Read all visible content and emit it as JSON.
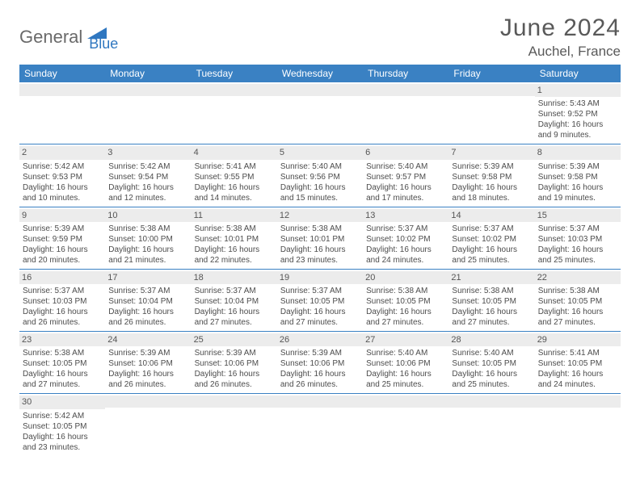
{
  "logo": {
    "part1": "General",
    "part2": "Blue"
  },
  "title": "June 2024",
  "location": "Auchel, France",
  "colors": {
    "header_bg": "#3a81c3",
    "header_text": "#ffffff",
    "daynum_bg": "#ececec",
    "border": "#3a81c3",
    "body_text": "#4c4c4c",
    "title_text": "#595959",
    "logo_gray": "#6a6a6a",
    "logo_blue": "#2f77c0"
  },
  "day_headers": [
    "Sunday",
    "Monday",
    "Tuesday",
    "Wednesday",
    "Thursday",
    "Friday",
    "Saturday"
  ],
  "weeks": [
    [
      {
        "n": "",
        "lines": []
      },
      {
        "n": "",
        "lines": []
      },
      {
        "n": "",
        "lines": []
      },
      {
        "n": "",
        "lines": []
      },
      {
        "n": "",
        "lines": []
      },
      {
        "n": "",
        "lines": []
      },
      {
        "n": "1",
        "lines": [
          "Sunrise: 5:43 AM",
          "Sunset: 9:52 PM",
          "Daylight: 16 hours and 9 minutes."
        ]
      }
    ],
    [
      {
        "n": "2",
        "lines": [
          "Sunrise: 5:42 AM",
          "Sunset: 9:53 PM",
          "Daylight: 16 hours and 10 minutes."
        ]
      },
      {
        "n": "3",
        "lines": [
          "Sunrise: 5:42 AM",
          "Sunset: 9:54 PM",
          "Daylight: 16 hours and 12 minutes."
        ]
      },
      {
        "n": "4",
        "lines": [
          "Sunrise: 5:41 AM",
          "Sunset: 9:55 PM",
          "Daylight: 16 hours and 14 minutes."
        ]
      },
      {
        "n": "5",
        "lines": [
          "Sunrise: 5:40 AM",
          "Sunset: 9:56 PM",
          "Daylight: 16 hours and 15 minutes."
        ]
      },
      {
        "n": "6",
        "lines": [
          "Sunrise: 5:40 AM",
          "Sunset: 9:57 PM",
          "Daylight: 16 hours and 17 minutes."
        ]
      },
      {
        "n": "7",
        "lines": [
          "Sunrise: 5:39 AM",
          "Sunset: 9:58 PM",
          "Daylight: 16 hours and 18 minutes."
        ]
      },
      {
        "n": "8",
        "lines": [
          "Sunrise: 5:39 AM",
          "Sunset: 9:58 PM",
          "Daylight: 16 hours and 19 minutes."
        ]
      }
    ],
    [
      {
        "n": "9",
        "lines": [
          "Sunrise: 5:39 AM",
          "Sunset: 9:59 PM",
          "Daylight: 16 hours and 20 minutes."
        ]
      },
      {
        "n": "10",
        "lines": [
          "Sunrise: 5:38 AM",
          "Sunset: 10:00 PM",
          "Daylight: 16 hours and 21 minutes."
        ]
      },
      {
        "n": "11",
        "lines": [
          "Sunrise: 5:38 AM",
          "Sunset: 10:01 PM",
          "Daylight: 16 hours and 22 minutes."
        ]
      },
      {
        "n": "12",
        "lines": [
          "Sunrise: 5:38 AM",
          "Sunset: 10:01 PM",
          "Daylight: 16 hours and 23 minutes."
        ]
      },
      {
        "n": "13",
        "lines": [
          "Sunrise: 5:37 AM",
          "Sunset: 10:02 PM",
          "Daylight: 16 hours and 24 minutes."
        ]
      },
      {
        "n": "14",
        "lines": [
          "Sunrise: 5:37 AM",
          "Sunset: 10:02 PM",
          "Daylight: 16 hours and 25 minutes."
        ]
      },
      {
        "n": "15",
        "lines": [
          "Sunrise: 5:37 AM",
          "Sunset: 10:03 PM",
          "Daylight: 16 hours and 25 minutes."
        ]
      }
    ],
    [
      {
        "n": "16",
        "lines": [
          "Sunrise: 5:37 AM",
          "Sunset: 10:03 PM",
          "Daylight: 16 hours and 26 minutes."
        ]
      },
      {
        "n": "17",
        "lines": [
          "Sunrise: 5:37 AM",
          "Sunset: 10:04 PM",
          "Daylight: 16 hours and 26 minutes."
        ]
      },
      {
        "n": "18",
        "lines": [
          "Sunrise: 5:37 AM",
          "Sunset: 10:04 PM",
          "Daylight: 16 hours and 27 minutes."
        ]
      },
      {
        "n": "19",
        "lines": [
          "Sunrise: 5:37 AM",
          "Sunset: 10:05 PM",
          "Daylight: 16 hours and 27 minutes."
        ]
      },
      {
        "n": "20",
        "lines": [
          "Sunrise: 5:38 AM",
          "Sunset: 10:05 PM",
          "Daylight: 16 hours and 27 minutes."
        ]
      },
      {
        "n": "21",
        "lines": [
          "Sunrise: 5:38 AM",
          "Sunset: 10:05 PM",
          "Daylight: 16 hours and 27 minutes."
        ]
      },
      {
        "n": "22",
        "lines": [
          "Sunrise: 5:38 AM",
          "Sunset: 10:05 PM",
          "Daylight: 16 hours and 27 minutes."
        ]
      }
    ],
    [
      {
        "n": "23",
        "lines": [
          "Sunrise: 5:38 AM",
          "Sunset: 10:05 PM",
          "Daylight: 16 hours and 27 minutes."
        ]
      },
      {
        "n": "24",
        "lines": [
          "Sunrise: 5:39 AM",
          "Sunset: 10:06 PM",
          "Daylight: 16 hours and 26 minutes."
        ]
      },
      {
        "n": "25",
        "lines": [
          "Sunrise: 5:39 AM",
          "Sunset: 10:06 PM",
          "Daylight: 16 hours and 26 minutes."
        ]
      },
      {
        "n": "26",
        "lines": [
          "Sunrise: 5:39 AM",
          "Sunset: 10:06 PM",
          "Daylight: 16 hours and 26 minutes."
        ]
      },
      {
        "n": "27",
        "lines": [
          "Sunrise: 5:40 AM",
          "Sunset: 10:06 PM",
          "Daylight: 16 hours and 25 minutes."
        ]
      },
      {
        "n": "28",
        "lines": [
          "Sunrise: 5:40 AM",
          "Sunset: 10:05 PM",
          "Daylight: 16 hours and 25 minutes."
        ]
      },
      {
        "n": "29",
        "lines": [
          "Sunrise: 5:41 AM",
          "Sunset: 10:05 PM",
          "Daylight: 16 hours and 24 minutes."
        ]
      }
    ],
    [
      {
        "n": "30",
        "lines": [
          "Sunrise: 5:42 AM",
          "Sunset: 10:05 PM",
          "Daylight: 16 hours and 23 minutes."
        ]
      },
      {
        "n": "",
        "lines": []
      },
      {
        "n": "",
        "lines": []
      },
      {
        "n": "",
        "lines": []
      },
      {
        "n": "",
        "lines": []
      },
      {
        "n": "",
        "lines": []
      },
      {
        "n": "",
        "lines": []
      }
    ]
  ]
}
